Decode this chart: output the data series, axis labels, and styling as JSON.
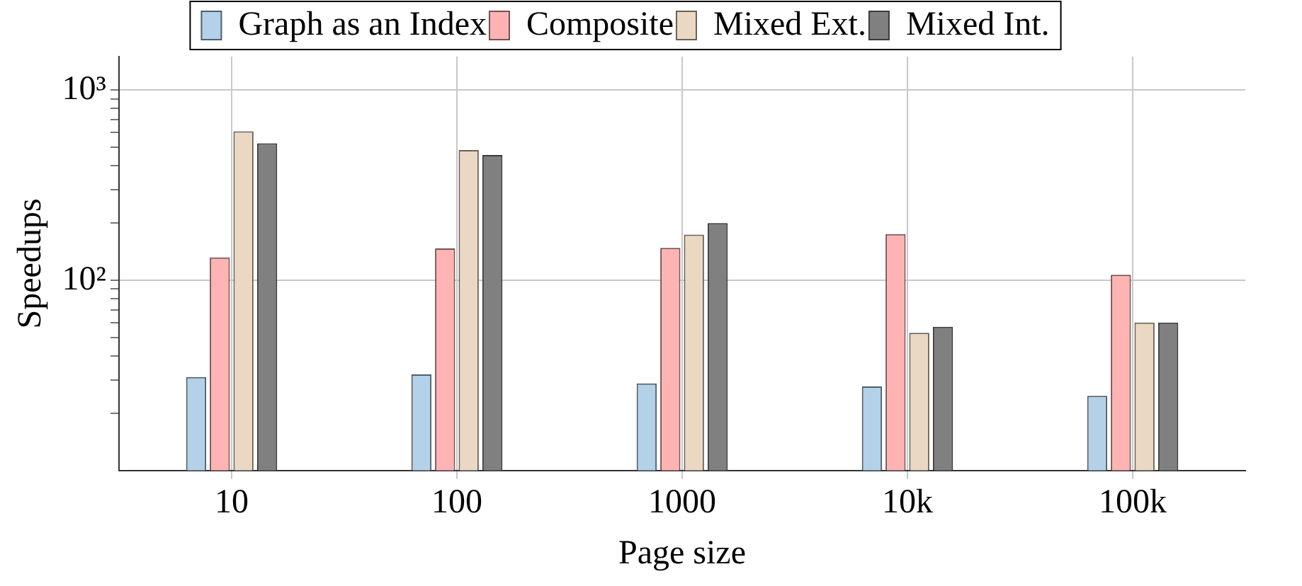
{
  "chart_data": {
    "type": "bar",
    "xlabel": "Page size",
    "ylabel": "Speedups",
    "categories": [
      "10",
      "100",
      "1000",
      "10k",
      "100k"
    ],
    "series": [
      {
        "name": "Graph as an Index",
        "color": "#b3d1e8",
        "values": [
          31,
          32,
          28.7,
          27.7,
          24.7
        ]
      },
      {
        "name": "Composite",
        "color": "#ffb3b3",
        "values": [
          132,
          147,
          148,
          175,
          107
        ]
      },
      {
        "name": "Mixed Ext.",
        "color": "#ead8c3",
        "values": [
          607,
          484,
          174,
          53,
          60
        ]
      },
      {
        "name": "Mixed Int.",
        "color": "#808080",
        "values": [
          525,
          456,
          200,
          57,
          60
        ]
      }
    ],
    "log": true,
    "ylim": [
      10,
      1500
    ],
    "yticks": [
      {
        "value": 20,
        "label": null
      },
      {
        "value": 30,
        "label": null
      },
      {
        "value": 40,
        "label": null
      },
      {
        "value": 50,
        "label": null
      },
      {
        "value": 60,
        "label": null
      },
      {
        "value": 70,
        "label": null
      },
      {
        "value": 80,
        "label": null
      },
      {
        "value": 90,
        "label": null
      },
      {
        "value": 100,
        "label": "10²"
      },
      {
        "value": 200,
        "label": null
      },
      {
        "value": 300,
        "label": null
      },
      {
        "value": 400,
        "label": null
      },
      {
        "value": 500,
        "label": null
      },
      {
        "value": 600,
        "label": null
      },
      {
        "value": 700,
        "label": null
      },
      {
        "value": 800,
        "label": null
      },
      {
        "value": 900,
        "label": null
      },
      {
        "value": 1000,
        "label": "10³"
      }
    ],
    "grid": true,
    "legend": "top"
  }
}
